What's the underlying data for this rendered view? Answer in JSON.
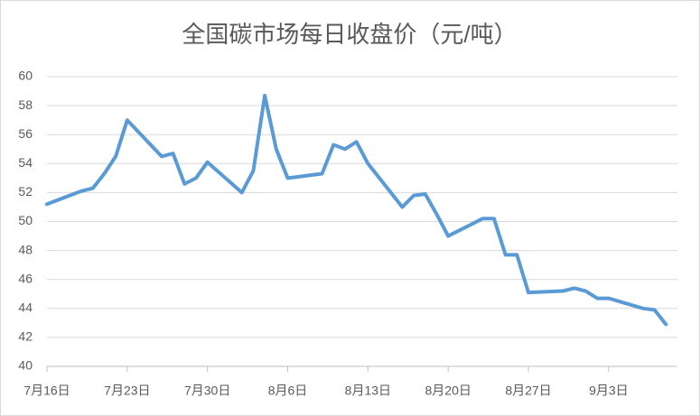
{
  "chart_data": {
    "type": "line",
    "title": "全国碳市场每日收盘价（元/吨）",
    "x": [
      0,
      3,
      4,
      5,
      6,
      7,
      10,
      11,
      12,
      13,
      14,
      17,
      18,
      19,
      20,
      21,
      24,
      25,
      26,
      27,
      28,
      31,
      32,
      33,
      34,
      35,
      38,
      39,
      40,
      41,
      42,
      45,
      46,
      47,
      48,
      49,
      52,
      53,
      54
    ],
    "series": [
      {
        "name": "收盘价",
        "color": "#5b9bd5",
        "values": [
          51.2,
          52.1,
          52.3,
          53.3,
          54.5,
          57.0,
          54.5,
          54.7,
          52.6,
          53.0,
          54.1,
          52.0,
          53.5,
          58.7,
          55.0,
          53.0,
          53.3,
          55.3,
          55.0,
          55.5,
          54.0,
          51.0,
          51.8,
          51.9,
          50.5,
          49.0,
          50.2,
          50.2,
          47.7,
          47.7,
          45.1,
          45.2,
          45.4,
          45.2,
          44.7,
          44.7,
          44.0,
          43.9,
          42.9
        ]
      }
    ],
    "xlim": [
      0,
      55
    ],
    "xticks": [
      {
        "value": 0,
        "label": "7月16日"
      },
      {
        "value": 7,
        "label": "7月23日"
      },
      {
        "value": 14,
        "label": "7月30日"
      },
      {
        "value": 21,
        "label": "8月6日"
      },
      {
        "value": 28,
        "label": "8月13日"
      },
      {
        "value": 35,
        "label": "8月20日"
      },
      {
        "value": 42,
        "label": "8月27日"
      },
      {
        "value": 49,
        "label": "9月3日"
      }
    ],
    "ylim": [
      40,
      60
    ],
    "yticks": [
      40,
      42,
      44,
      46,
      48,
      50,
      52,
      54,
      56,
      58,
      60
    ],
    "grid": true
  }
}
